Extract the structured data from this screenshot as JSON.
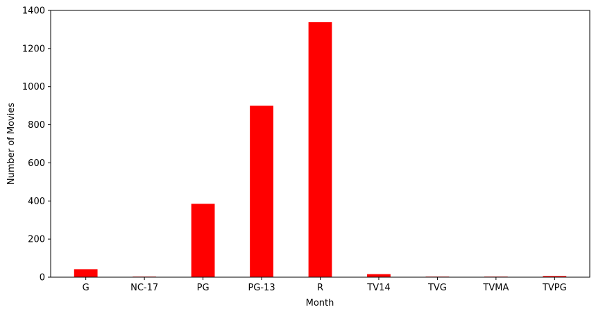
{
  "chart_data": {
    "type": "bar",
    "categories": [
      "G",
      "NC-17",
      "PG",
      "PG-13",
      "R",
      "TV14",
      "TVG",
      "TVMA",
      "TVPG"
    ],
    "values": [
      42,
      3,
      385,
      900,
      1338,
      16,
      3,
      3,
      6
    ],
    "xlabel": "Month",
    "ylabel": "Number of Movies",
    "ylim": [
      0,
      1400
    ],
    "yticks": [
      0,
      200,
      400,
      600,
      800,
      1000,
      1200,
      1400
    ],
    "bar_color": "#ff0000",
    "grid": false
  }
}
